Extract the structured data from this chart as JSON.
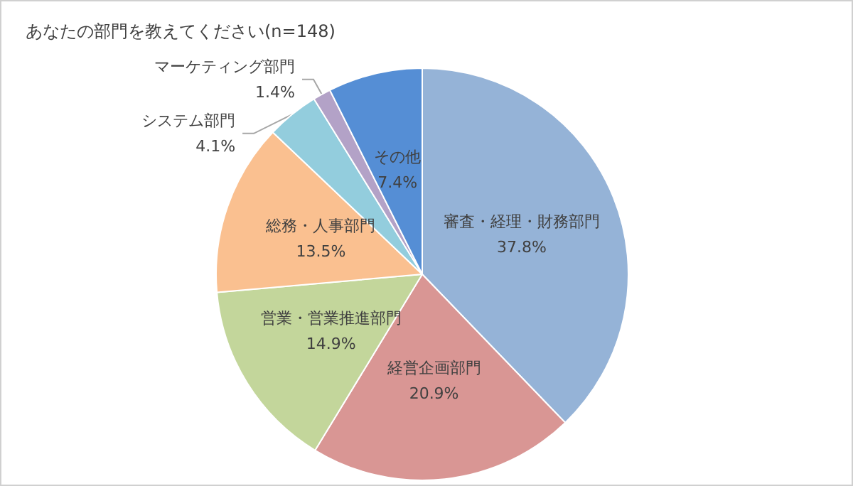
{
  "chart_data": {
    "type": "pie",
    "title": "あなたの部門を教えてください(n=148)",
    "categories": [
      "審査・経理・財務部門",
      "経営企画部門",
      "営業・営業推進部門",
      "総務・人事部門",
      "システム部門",
      "マーケティング部門",
      "その他"
    ],
    "values": [
      37.8,
      20.9,
      14.9,
      13.5,
      4.1,
      1.4,
      7.4
    ],
    "value_labels": [
      "37.8%",
      "20.9%",
      "14.9%",
      "13.5%",
      "4.1%",
      "1.4%",
      "7.4%"
    ],
    "colors": [
      "#95b3d7",
      "#d99694",
      "#c3d69b",
      "#fac090",
      "#93cddd",
      "#b3a2c7",
      "#558ed5"
    ],
    "legend": false
  }
}
